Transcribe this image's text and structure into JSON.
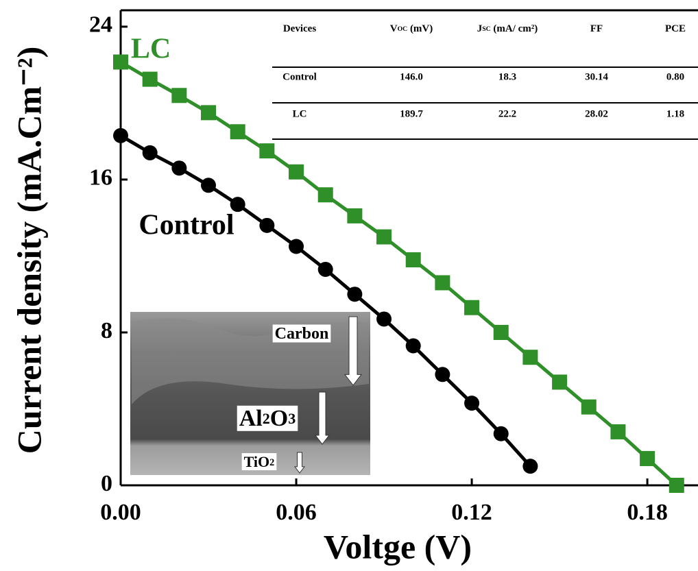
{
  "chart_data": {
    "type": "line",
    "x_label": "Voltge (V)",
    "y_label": "Current density (mA.Cm⁻²)",
    "xlim": [
      0,
      0.195
    ],
    "ylim": [
      0,
      24.75
    ],
    "xticks": [
      {
        "value": 0,
        "label": "0.00"
      },
      0.06,
      0.12,
      0.18
    ],
    "yticks": [
      0,
      8,
      16,
      24
    ],
    "series": [
      {
        "name": "LC",
        "color": "#2f8f28",
        "marker": "square",
        "x": [
          0,
          0.01,
          0.02,
          0.03,
          0.04,
          0.05,
          0.06,
          0.07,
          0.08,
          0.09,
          0.1,
          0.11,
          0.12,
          0.13,
          0.14,
          0.15,
          0.16,
          0.17,
          0.18,
          0.19
        ],
        "values": [
          22.15,
          21.25,
          20.4,
          19.5,
          18.5,
          17.5,
          16.4,
          15.2,
          14.1,
          13.0,
          11.8,
          10.6,
          9.3,
          8.0,
          6.7,
          5.4,
          4.1,
          2.8,
          1.4,
          0.0
        ]
      },
      {
        "name": "Control",
        "color": "#000000",
        "marker": "circle",
        "x": [
          0,
          0.01,
          0.02,
          0.03,
          0.04,
          0.05,
          0.06,
          0.07,
          0.08,
          0.09,
          0.1,
          0.11,
          0.12,
          0.13,
          0.14
        ],
        "values": [
          18.3,
          17.4,
          16.6,
          15.7,
          14.7,
          13.6,
          12.5,
          11.3,
          10.0,
          8.7,
          7.3,
          5.8,
          4.3,
          2.7,
          1.0
        ]
      }
    ],
    "table": {
      "header": [
        {
          "main": "Devices"
        },
        {
          "main": "V",
          "sub": "OC",
          "rest": " (mV)"
        },
        {
          "main": "J",
          "sub": "SC",
          "rest": " (mA/ cm²)"
        },
        {
          "main": "FF"
        },
        {
          "main": "PCE"
        }
      ],
      "rows": [
        [
          "Control",
          "146.0",
          "18.3",
          "30.14",
          "0.80"
        ],
        [
          "LC",
          "189.7",
          "22.2",
          "28.02",
          "1.18"
        ]
      ]
    },
    "inset_image": {
      "labels": [
        {
          "main": "Carbon"
        },
        {
          "main": "Al",
          "sub": "2",
          "rest": "O",
          "sub2": "3"
        },
        {
          "main": "TiO",
          "sub": "2"
        }
      ]
    }
  }
}
